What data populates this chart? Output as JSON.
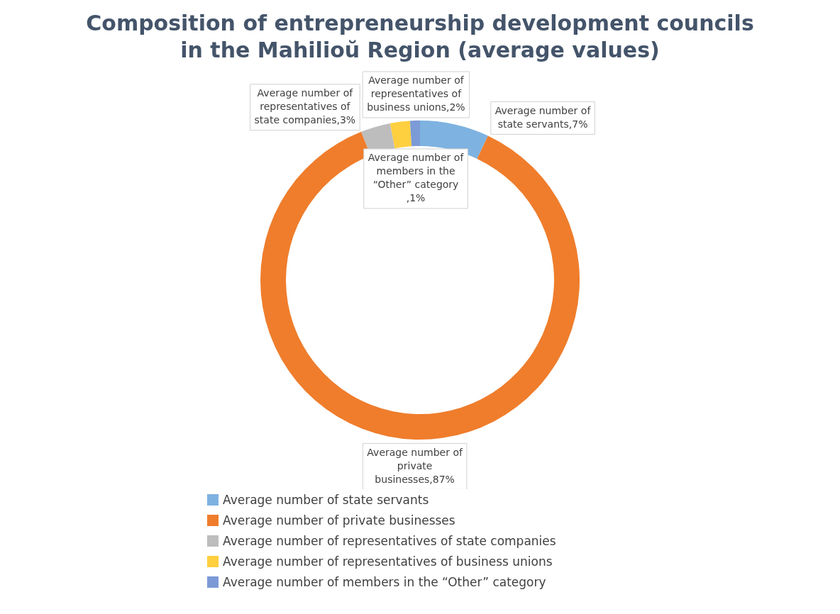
{
  "chart_data": {
    "type": "donut",
    "title": "Composition of entrepreneurship development councils in the Mahilioŭ Region (average values)",
    "categories": [
      "Average number of state servants",
      "Average number of private businesses",
      "Average number of representatives of state companies",
      "Average number of representatives of business unions",
      "Average number of members in the “Other” category"
    ],
    "values": [
      7,
      87,
      3,
      2,
      1
    ],
    "colors": [
      "#7eb2e0",
      "#ef7d2c",
      "#bdbdbd",
      "#fecf3f",
      "#7b9ad6"
    ],
    "value_labels": [
      "Average number of state servants,7%",
      "Average number of private businesses,87%",
      "Average number of representatives of state companies,3%",
      "Average number of representatives of business unions,2%",
      "Average number of members in the “Other” category ,1%"
    ],
    "legend": "bottom"
  }
}
